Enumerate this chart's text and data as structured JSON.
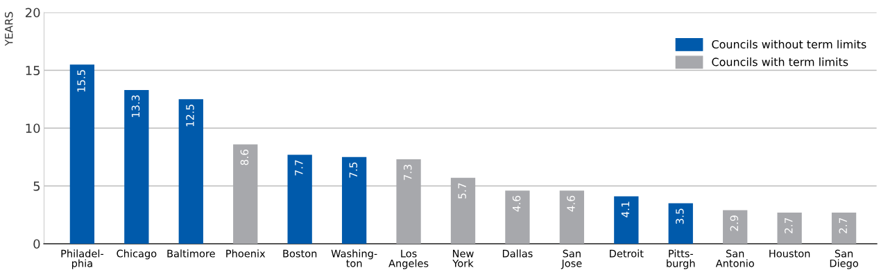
{
  "chart_data": {
    "type": "bar",
    "ylabel": "YEARS",
    "categories": [
      "Philadel-\nphia",
      "Chicago",
      "Baltimore",
      "Phoenix",
      "Boston",
      "Washing-\nton",
      "Los\nAngeles",
      "New\nYork",
      "Dallas",
      "San\nJose",
      "Detroit",
      "Pitts-\nburgh",
      "San\nAntonio",
      "Houston",
      "San\nDiego"
    ],
    "series": [
      {
        "name": "Councils without term limits",
        "color": "#005aab",
        "values": [
          15.5,
          13.3,
          12.5,
          null,
          7.7,
          7.5,
          null,
          null,
          null,
          null,
          4.1,
          3.5,
          null,
          null,
          null
        ]
      },
      {
        "name": "Councils with term limits",
        "color": "#a7a8ac",
        "values": [
          null,
          null,
          null,
          8.6,
          null,
          null,
          7.3,
          5.7,
          4.6,
          4.6,
          null,
          null,
          2.9,
          2.7,
          2.7
        ]
      }
    ],
    "data_labels": true,
    "ylim": [
      0,
      20
    ],
    "yticks": [
      0,
      5,
      10,
      15,
      20
    ],
    "grid": "y",
    "legend": "top right"
  }
}
